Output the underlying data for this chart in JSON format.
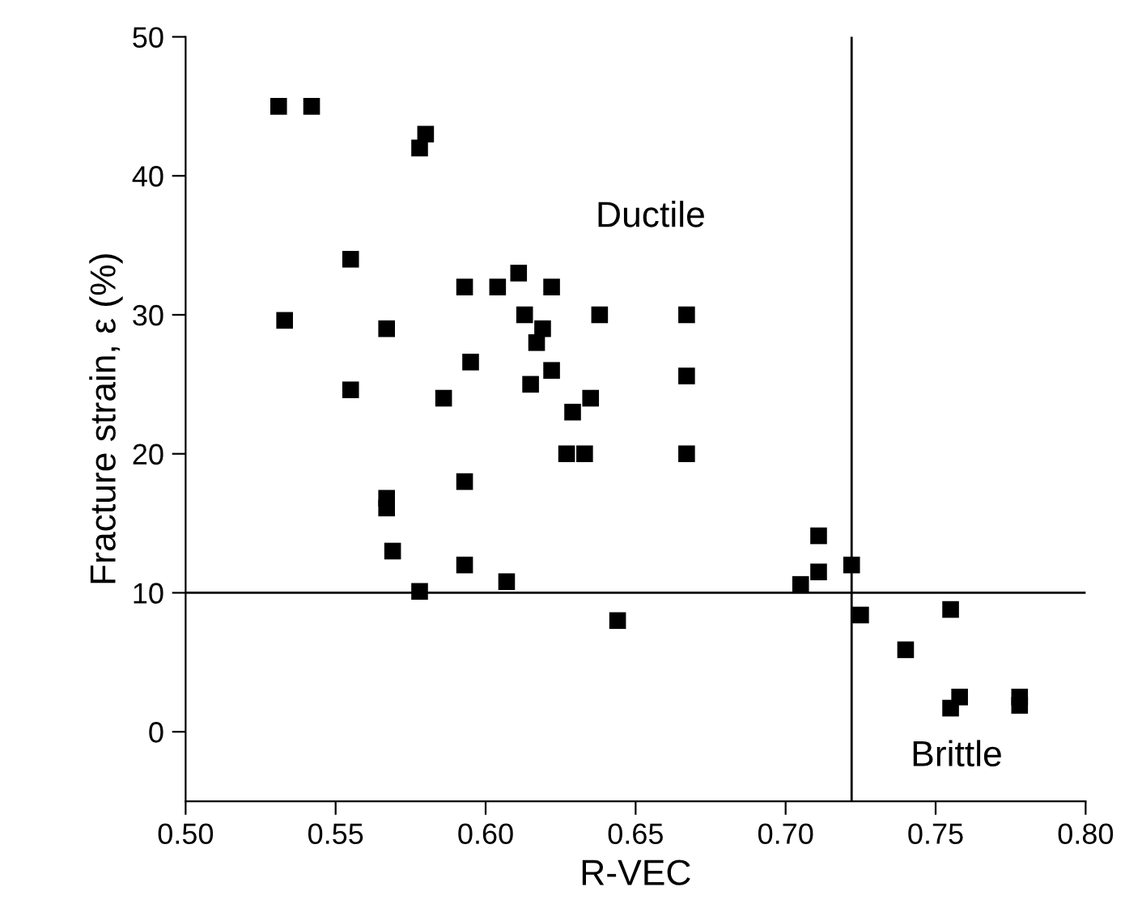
{
  "chart_data": {
    "type": "scatter",
    "xlabel": "R-VEC",
    "ylabel": "Fracture strain, ε (%)",
    "marker": "square",
    "grid": false,
    "legend": false,
    "series": [
      {
        "color": "#000000",
        "x": [
          0.531,
          0.542,
          0.58,
          0.578,
          0.555,
          0.533,
          0.555,
          0.567,
          0.567,
          0.567,
          0.569,
          0.578,
          0.586,
          0.593,
          0.593,
          0.593,
          0.595,
          0.604,
          0.607,
          0.611,
          0.613,
          0.615,
          0.617,
          0.619,
          0.622,
          0.622,
          0.627,
          0.629,
          0.633,
          0.635,
          0.638,
          0.644,
          0.667,
          0.667,
          0.667,
          0.705,
          0.711,
          0.711,
          0.722,
          0.725,
          0.74,
          0.755,
          0.755,
          0.758,
          0.778,
          0.778
        ],
        "values": [
          45,
          45,
          43,
          42,
          34,
          29.6,
          24.6,
          29,
          16.8,
          16.1,
          13,
          10.1,
          24,
          32,
          18,
          12,
          26.6,
          32,
          10.8,
          33,
          30,
          25,
          28,
          29,
          32,
          26,
          20,
          23,
          20,
          24,
          30,
          8,
          30,
          25.6,
          20,
          10.6,
          14.1,
          11.5,
          12,
          8.4,
          5.9,
          8.8,
          1.7,
          2.5,
          2.5,
          1.9
        ]
      }
    ],
    "ref_lines": [
      {
        "axis": "x",
        "value": 0.722,
        "color": "#000000"
      },
      {
        "axis": "y",
        "value": 10,
        "color": "#000000"
      }
    ],
    "annotations": [
      "Ductile",
      "Brittle"
    ],
    "xlim": [
      0.5,
      0.8
    ],
    "xticks": [
      {
        "value": 0.5,
        "label": "0.50"
      },
      {
        "value": 0.55,
        "label": "0.55"
      },
      {
        "value": 0.6,
        "label": "0.60"
      },
      {
        "value": 0.65,
        "label": "0.65"
      },
      {
        "value": 0.7,
        "label": "0.70"
      },
      {
        "value": 0.75,
        "label": "0.75"
      },
      {
        "value": 0.8,
        "label": "0.80"
      }
    ],
    "ylim": [
      -5,
      50
    ],
    "yticks": [
      0,
      10,
      20,
      30,
      40,
      50
    ]
  }
}
